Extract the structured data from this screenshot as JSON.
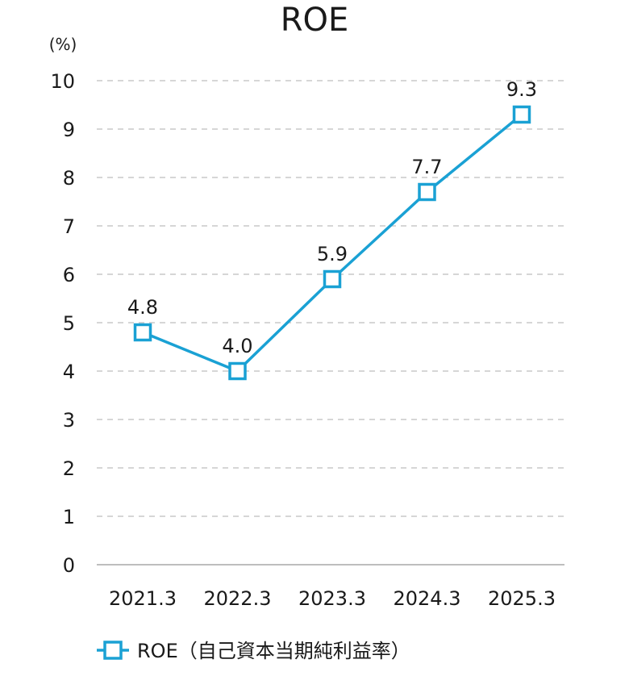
{
  "chart_data": {
    "type": "line",
    "title": "ROE",
    "unit_label": "(%)",
    "categories": [
      "2021.3",
      "2022.3",
      "2023.3",
      "2024.3",
      "2025.3"
    ],
    "series": [
      {
        "name": "ROE（自己資本当期純利益率）",
        "values": [
          4.8,
          4.0,
          5.9,
          7.7,
          9.3
        ],
        "data_labels": [
          "4.8",
          "4.0",
          "5.9",
          "7.7",
          "9.3"
        ],
        "color": "#1aa1d4",
        "marker": "square-outline"
      }
    ],
    "ylim": [
      0,
      10
    ],
    "yticks": [
      0,
      1,
      2,
      3,
      4,
      5,
      6,
      7,
      8,
      9,
      10
    ],
    "grid": true,
    "legend_position": "bottom-left"
  },
  "colors": {
    "series": "#1aa1d4",
    "grid": "#c8c8c8",
    "axis": "#a8a8a8",
    "text": "#1a1a1a"
  }
}
